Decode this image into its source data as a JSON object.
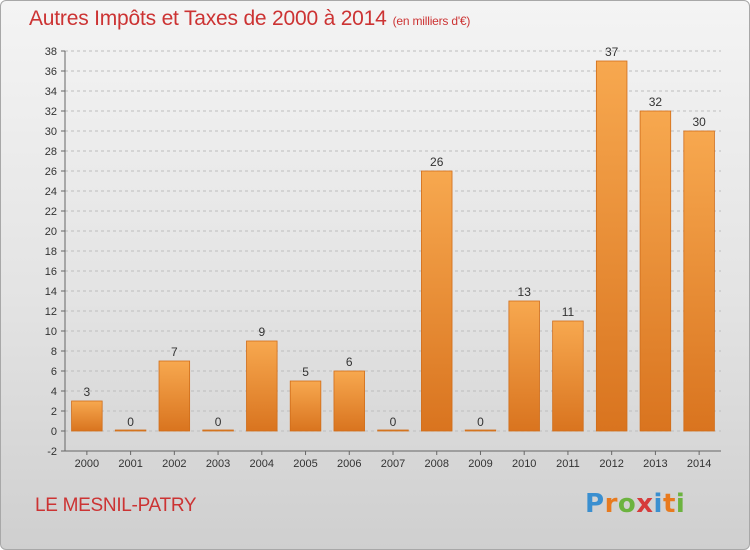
{
  "title": "Autres Impôts et Taxes de 2000 à 2014",
  "subtitle": "(en milliers d'€)",
  "commune": "LE MESNIL-PATRY",
  "logo": {
    "letters": [
      "P",
      "r",
      "o",
      "x",
      "i",
      "t",
      "i"
    ],
    "colors": [
      "#3a8fd0",
      "#e87a1e",
      "#6cb33f",
      "#d63b3b",
      "#3a8fd0",
      "#e87a1e",
      "#6cb33f"
    ]
  },
  "colors": {
    "title": "#cc3333",
    "bar_light": "#f7a84f",
    "bar_dark": "#d9741f",
    "bar_edge": "#d06d1a",
    "grid": "#bdbdbd"
  },
  "chart_data": {
    "type": "bar",
    "categories": [
      "2000",
      "2001",
      "2002",
      "2003",
      "2004",
      "2005",
      "2006",
      "2007",
      "2008",
      "2009",
      "2010",
      "2011",
      "2012",
      "2013",
      "2014"
    ],
    "values": [
      3,
      0,
      7,
      0,
      9,
      5,
      6,
      0,
      26,
      0,
      13,
      11,
      37,
      32,
      30
    ],
    "value_labels": [
      "3",
      "0",
      "7",
      "0",
      "9",
      "5",
      "6",
      "0",
      "26",
      "0",
      "13",
      "11",
      "37",
      "32",
      "30"
    ],
    "ylim": [
      -2,
      38
    ],
    "yticks": [
      "-2",
      "0",
      "2",
      "4",
      "6",
      "8",
      "10",
      "12",
      "14",
      "16",
      "18",
      "20",
      "22",
      "24",
      "26",
      "28",
      "30",
      "32",
      "34",
      "36",
      "38"
    ],
    "grid": true
  }
}
